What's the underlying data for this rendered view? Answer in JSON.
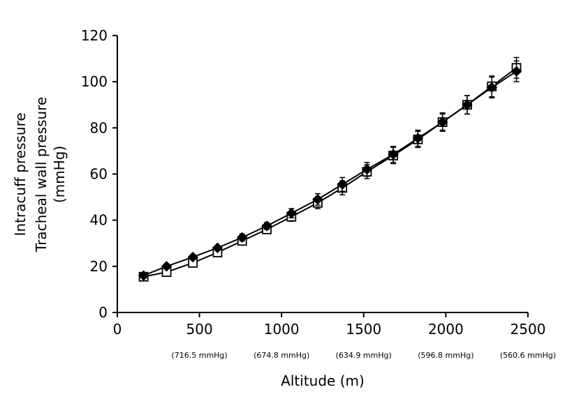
{
  "chart_data": {
    "type": "line",
    "ylabel_lines": [
      "Intracuff pressure",
      "Tracheal wall pressure",
      "(mmHg)"
    ],
    "xlabel": "Altitude (m)",
    "xlim": [
      0,
      2500
    ],
    "ylim": [
      0,
      120
    ],
    "x_ticks": [
      "0",
      "500",
      "1000",
      "1500",
      "2000",
      "2500"
    ],
    "y_ticks": [
      "0",
      "20",
      "40",
      "60",
      "80",
      "100",
      "120"
    ],
    "x_pressure_labels": [
      {
        "x": 500,
        "text": "(716.5 mmHg)"
      },
      {
        "x": 1000,
        "text": "(674.8 mmHg)"
      },
      {
        "x": 1500,
        "text": "(634.9 mmHg)"
      },
      {
        "x": 2000,
        "text": "(596.8 mmHg)"
      },
      {
        "x": 2500,
        "text": "(560.6 mmHg)"
      }
    ],
    "grid": false,
    "legend": "none",
    "x": [
      160,
      300,
      460,
      610,
      760,
      910,
      1060,
      1220,
      1370,
      1520,
      1680,
      1830,
      1980,
      2130,
      2280,
      2430
    ],
    "series": [
      {
        "marker": "filled-diamond",
        "color": "#000000",
        "values": [
          16,
          20,
          24,
          28,
          32.5,
          37.5,
          43,
          49,
          55.5,
          62,
          68.5,
          75.5,
          82.5,
          90,
          97.5,
          104.5
        ],
        "errors": [
          1,
          1,
          1,
          1,
          1.5,
          1.5,
          2,
          2.5,
          3,
          3,
          3.5,
          3.5,
          4,
          4,
          4.5,
          4.5
        ]
      },
      {
        "marker": "open-square",
        "color": "#000000",
        "values": [
          15.5,
          17.5,
          21.5,
          26,
          31,
          36,
          41.5,
          47.5,
          54,
          61,
          68,
          75,
          82.5,
          90,
          98,
          106
        ],
        "errors": [
          1,
          1,
          1,
          1,
          1.5,
          1.5,
          2,
          2.5,
          3,
          3,
          3.5,
          3.5,
          3.5,
          4,
          4.5,
          4.5
        ]
      }
    ]
  }
}
